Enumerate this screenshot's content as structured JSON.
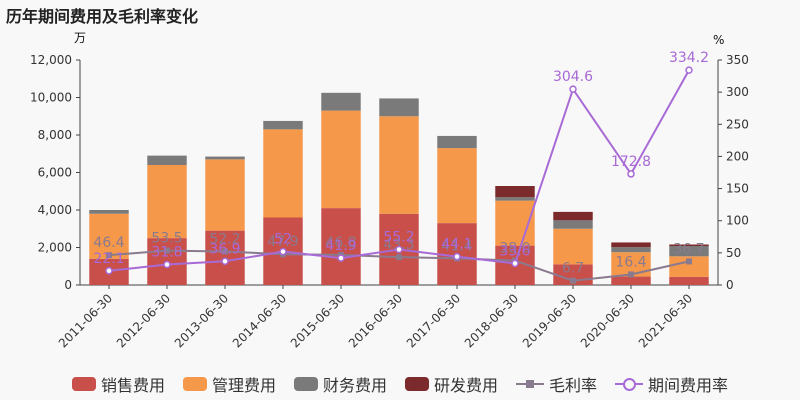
{
  "chart_data": {
    "type": "bar",
    "title": "历年期间费用及毛利率变化",
    "left_unit": "万",
    "right_unit": "%",
    "categories": [
      "2011-06-30",
      "2012-06-30",
      "2013-06-30",
      "2014-06-30",
      "2015-06-30",
      "2016-06-30",
      "2017-06-30",
      "2018-06-30",
      "2019-06-30",
      "2020-06-30",
      "2021-06-30"
    ],
    "y_left": {
      "min": 0,
      "max": 12000,
      "ticks": [
        "0",
        "2,000",
        "4,000",
        "6,000",
        "8,000",
        "10,000",
        "12,000"
      ]
    },
    "y_right": {
      "min": 0,
      "max": 350,
      "ticks": [
        "0",
        "50",
        "100",
        "150",
        "200",
        "250",
        "300",
        "350"
      ]
    },
    "stacked_series": [
      {
        "name": "销售费用",
        "color": "#c94f4b",
        "values": [
          1400,
          2500,
          2900,
          3600,
          4100,
          3800,
          3300,
          2100,
          1100,
          450,
          430
        ]
      },
      {
        "name": "管理费用",
        "color": "#f5984a",
        "values": [
          2400,
          3900,
          3800,
          4700,
          5200,
          5200,
          4000,
          2400,
          1900,
          1300,
          1100
        ]
      },
      {
        "name": "财务费用",
        "color": "#7a7a7a",
        "values": [
          200,
          500,
          150,
          450,
          950,
          950,
          650,
          180,
          450,
          270,
          550
        ]
      },
      {
        "name": "研发费用",
        "color": "#7b2b2b",
        "values": [
          0,
          0,
          0,
          0,
          0,
          0,
          0,
          600,
          450,
          250,
          80
        ]
      }
    ],
    "line_series": [
      {
        "name": "毛利率",
        "color": "#8a7a8e",
        "marker": "square",
        "values": [
          46.4,
          53.5,
          52.2,
          47.9,
          46.8,
          43.3,
          41.4,
          38.0,
          6.7,
          16.4,
          36.7
        ],
        "labels": [
          "46.4",
          "53.5",
          "52.2",
          "47.9",
          "46.8",
          "43.3",
          "41.4",
          "38.0",
          "6.7",
          "16.4",
          "36.7"
        ]
      },
      {
        "name": "期间费用率",
        "color": "#a86ad6",
        "marker": "circle",
        "values": [
          22.1,
          31.8,
          36.9,
          52.0,
          41.9,
          55.2,
          44.1,
          33.6,
          304.6,
          172.8,
          334.2
        ],
        "labels": [
          "22.1",
          "31.8",
          "36.9",
          "52",
          "41.9",
          "55.2",
          "44.1",
          "33.6",
          "304.6",
          "172.8",
          "334.2"
        ]
      }
    ]
  }
}
